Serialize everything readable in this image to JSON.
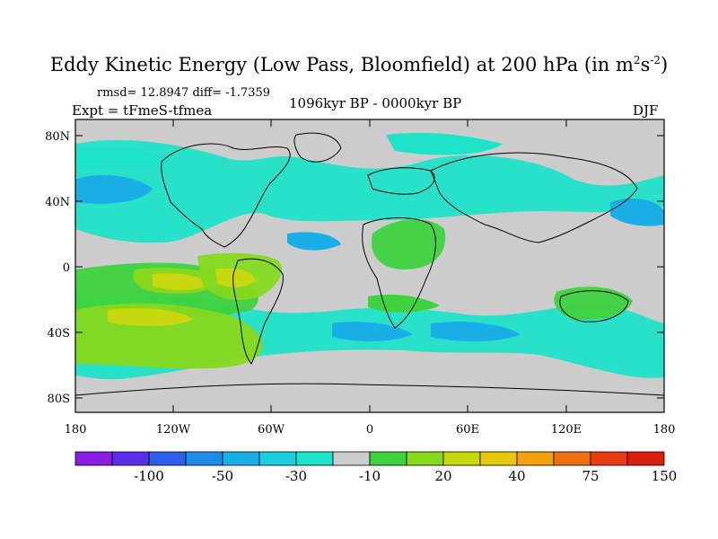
{
  "title": {
    "main": "Eddy Kinetic Energy (Low Pass, Bloomfield) at 200 hPa (in m",
    "sup1": "2",
    "mid": "s",
    "sup2": "-2",
    "end": ")"
  },
  "stats": "rmsd= 12.8947 diff= -1.7359",
  "expt": "Expt = tFmeS-tfmea",
  "period": "1096kyr BP - 0000kyr BP",
  "season": "DJF",
  "map": {
    "lat_ticks": [
      "80N",
      "40N",
      "0",
      "40S",
      "80S"
    ],
    "lon_ticks": [
      "180",
      "120W",
      "60W",
      "0",
      "60E",
      "120E",
      "180"
    ],
    "background_color": "#cccccc"
  },
  "colorbar": {
    "colors": [
      "#8a1ee0",
      "#5a2ee8",
      "#2f5fe8",
      "#1c8ce6",
      "#1aaee6",
      "#1ccfe0",
      "#1de3c8",
      "#cccccc",
      "#3ed23e",
      "#86d81e",
      "#c8d80e",
      "#e6c80e",
      "#f2a20e",
      "#ee6e12",
      "#e83c12",
      "#d81e0e"
    ],
    "labels": [
      "-100",
      "-50",
      "-30",
      "-10",
      "20",
      "40",
      "75",
      "150"
    ]
  }
}
